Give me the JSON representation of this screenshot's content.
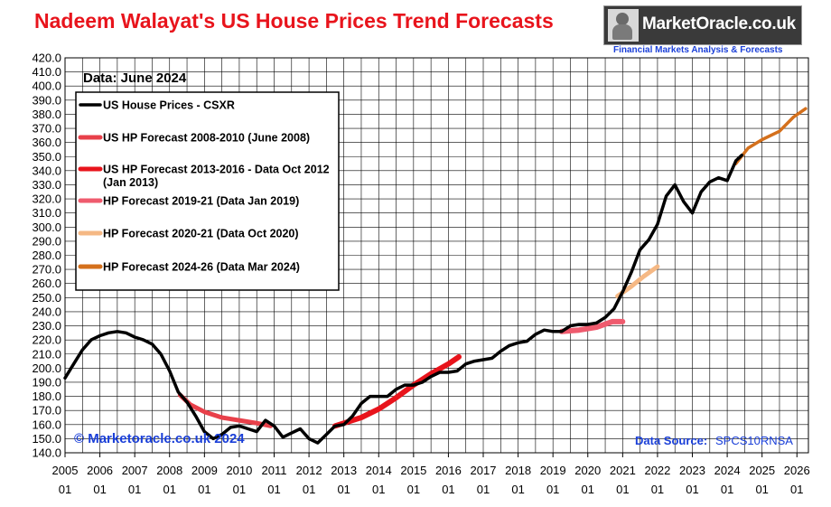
{
  "header": {
    "title": "Nadeem Walayat's US House Prices Trend Forecasts",
    "logo_text": "MarketOracle.co.uk",
    "logo_subtitle": "Financial Markets Analysis & Forecasts"
  },
  "chart_data": {
    "type": "line",
    "title": "Nadeem Walayat's US House Prices Trend Forecasts",
    "xlabel": "",
    "ylabel": "",
    "ylim": [
      140,
      420
    ],
    "y_ticks": [
      "140.0",
      "150.0",
      "160.0",
      "170.0",
      "180.0",
      "190.0",
      "200.0",
      "210.0",
      "220.0",
      "230.0",
      "240.0",
      "250.0",
      "260.0",
      "270.0",
      "280.0",
      "290.0",
      "300.0",
      "310.0",
      "320.0",
      "330.0",
      "340.0",
      "350.0",
      "360.0",
      "370.0",
      "380.0",
      "390.0",
      "400.0",
      "410.0",
      "420.0"
    ],
    "xlim": [
      2005.0,
      2026.33
    ],
    "x_ticks": [
      "2005",
      "2006",
      "2007",
      "2008",
      "2009",
      "2010",
      "2011",
      "2012",
      "2013",
      "2014",
      "2015",
      "2016",
      "2017",
      "2018",
      "2019",
      "2020",
      "2021",
      "2022",
      "2023",
      "2024",
      "2025",
      "2026"
    ],
    "x_tick_sublabel": "01",
    "grid": true,
    "legend_position": "top-left",
    "annotations": {
      "data_date": "Data:  June 2024",
      "copyright": "© Marketoracle.co.uk 2024",
      "source_label": "Data Source:",
      "source_value": "SPCS10RNSA"
    },
    "series": [
      {
        "name": "US House Prices - CSXR",
        "color": "#000000",
        "width": 3.5,
        "points": [
          [
            2005.0,
            193
          ],
          [
            2005.25,
            203
          ],
          [
            2005.5,
            213
          ],
          [
            2005.75,
            220
          ],
          [
            2006.0,
            223
          ],
          [
            2006.25,
            225
          ],
          [
            2006.5,
            226
          ],
          [
            2006.75,
            225
          ],
          [
            2007.0,
            222
          ],
          [
            2007.25,
            220
          ],
          [
            2007.5,
            217
          ],
          [
            2007.75,
            210
          ],
          [
            2008.0,
            198
          ],
          [
            2008.25,
            183
          ],
          [
            2008.5,
            176
          ],
          [
            2008.75,
            166
          ],
          [
            2009.0,
            155
          ],
          [
            2009.25,
            150
          ],
          [
            2009.5,
            153
          ],
          [
            2009.75,
            158
          ],
          [
            2010.0,
            159
          ],
          [
            2010.25,
            157
          ],
          [
            2010.5,
            155
          ],
          [
            2010.75,
            163
          ],
          [
            2011.0,
            159
          ],
          [
            2011.25,
            151
          ],
          [
            2011.5,
            154
          ],
          [
            2011.75,
            157
          ],
          [
            2012.0,
            150
          ],
          [
            2012.25,
            147
          ],
          [
            2012.5,
            153
          ],
          [
            2012.75,
            159
          ],
          [
            2013.0,
            160
          ],
          [
            2013.25,
            166
          ],
          [
            2013.5,
            175
          ],
          [
            2013.75,
            180
          ],
          [
            2014.0,
            180
          ],
          [
            2014.25,
            180
          ],
          [
            2014.5,
            185
          ],
          [
            2014.75,
            188
          ],
          [
            2015.0,
            188
          ],
          [
            2015.25,
            190
          ],
          [
            2015.5,
            194
          ],
          [
            2015.75,
            197
          ],
          [
            2016.0,
            197
          ],
          [
            2016.25,
            198
          ],
          [
            2016.5,
            203
          ],
          [
            2016.75,
            205
          ],
          [
            2017.0,
            206
          ],
          [
            2017.25,
            207
          ],
          [
            2017.5,
            212
          ],
          [
            2017.75,
            216
          ],
          [
            2018.0,
            218
          ],
          [
            2018.25,
            219
          ],
          [
            2018.5,
            224
          ],
          [
            2018.75,
            227
          ],
          [
            2019.0,
            226
          ],
          [
            2019.25,
            226
          ],
          [
            2019.5,
            230
          ],
          [
            2019.75,
            231
          ],
          [
            2020.0,
            231
          ],
          [
            2020.25,
            232
          ],
          [
            2020.5,
            236
          ],
          [
            2020.75,
            242
          ],
          [
            2021.0,
            254
          ],
          [
            2021.25,
            268
          ],
          [
            2021.5,
            284
          ],
          [
            2021.75,
            291
          ],
          [
            2022.0,
            302
          ],
          [
            2022.25,
            322
          ],
          [
            2022.5,
            330
          ],
          [
            2022.75,
            318
          ],
          [
            2023.0,
            310
          ],
          [
            2023.25,
            325
          ],
          [
            2023.5,
            332
          ],
          [
            2023.75,
            335
          ],
          [
            2024.0,
            333
          ],
          [
            2024.25,
            347
          ],
          [
            2024.42,
            351
          ]
        ]
      },
      {
        "name": "US HP Forecast 2008-2010 (June 2008)",
        "color": "#e8404a",
        "width": 5,
        "points": [
          [
            2008.3,
            181
          ],
          [
            2008.6,
            174
          ],
          [
            2009.0,
            169
          ],
          [
            2009.5,
            165
          ],
          [
            2010.0,
            163
          ],
          [
            2010.5,
            161
          ],
          [
            2010.9,
            159
          ]
        ]
      },
      {
        "name": "US HP Forecast 2013-2016 - Data Oct 2012 (Jan 2013)",
        "name_line2": "(Jan 2013)",
        "color": "#e8141c",
        "width": 6,
        "points": [
          [
            2012.75,
            159
          ],
          [
            2013.0,
            161
          ],
          [
            2013.5,
            165
          ],
          [
            2014.0,
            171
          ],
          [
            2014.5,
            179
          ],
          [
            2015.0,
            188
          ],
          [
            2015.5,
            196
          ],
          [
            2016.0,
            203
          ],
          [
            2016.3,
            208
          ]
        ]
      },
      {
        "name": "HP Forecast 2019-21 (Data Jan 2019)",
        "color": "#ef5b6e",
        "width": 6,
        "points": [
          [
            2019.25,
            226
          ],
          [
            2019.75,
            227
          ],
          [
            2020.25,
            229
          ],
          [
            2020.7,
            233
          ],
          [
            2021.0,
            233
          ]
        ]
      },
      {
        "name": "HP Forecast 2020-21 (Data Oct 2020)",
        "color": "#f5b884",
        "width": 5,
        "points": [
          [
            2020.85,
            251
          ],
          [
            2021.25,
            258
          ],
          [
            2021.6,
            265
          ],
          [
            2022.0,
            272
          ]
        ]
      },
      {
        "name": "HP Forecast 2024-26 (Data Mar 2024)",
        "color": "#d4701c",
        "width": 3.5,
        "points": [
          [
            2024.25,
            345
          ],
          [
            2024.6,
            356
          ],
          [
            2025.0,
            362
          ],
          [
            2025.5,
            368
          ],
          [
            2025.9,
            378
          ],
          [
            2026.25,
            384
          ]
        ]
      }
    ]
  }
}
